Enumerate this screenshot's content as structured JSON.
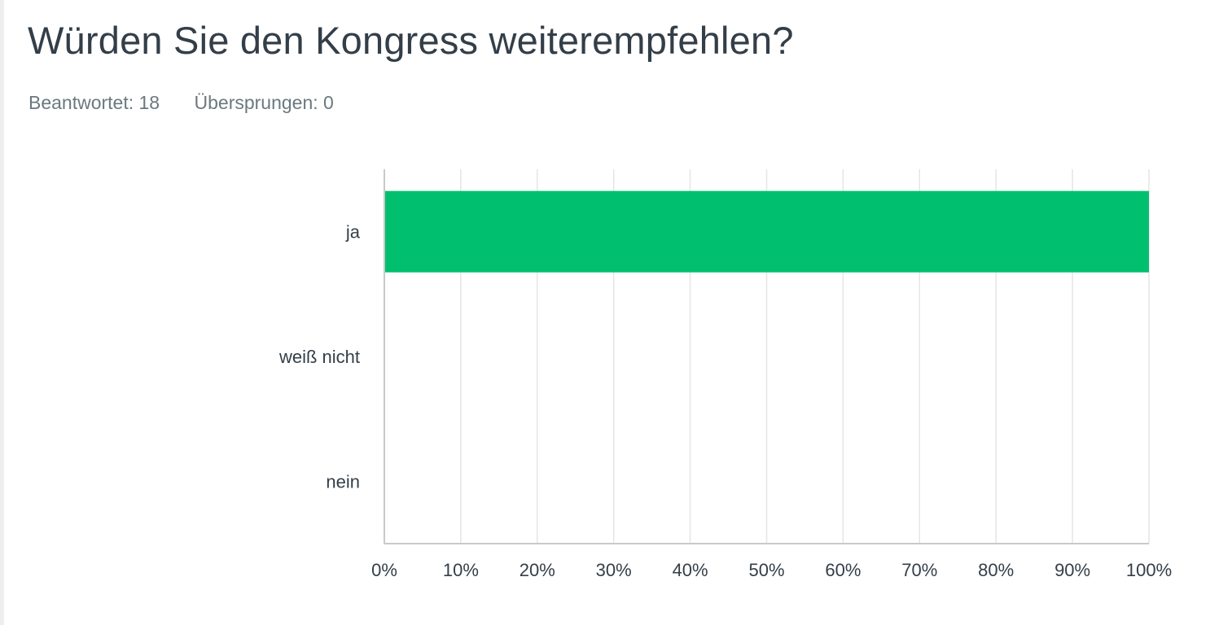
{
  "question": {
    "title": "Würden Sie den Kongress weiterempfehlen?",
    "answered": "Beantwortet: 18",
    "skipped": "Übersprungen: 0"
  },
  "colors": {
    "bar": "#00bf6f",
    "gridline": "#e5e5e5",
    "axis": "#c9c9c9",
    "text": "#333e48",
    "muted": "#6b787f"
  },
  "chart_data": {
    "type": "bar",
    "orientation": "horizontal",
    "categories": [
      "ja",
      "weiß nicht",
      "nein"
    ],
    "values": [
      100,
      0,
      0
    ],
    "xlim": [
      0,
      100
    ],
    "xticks": [
      "0%",
      "10%",
      "20%",
      "30%",
      "40%",
      "50%",
      "60%",
      "70%",
      "80%",
      "90%",
      "100%"
    ],
    "grid": true
  }
}
